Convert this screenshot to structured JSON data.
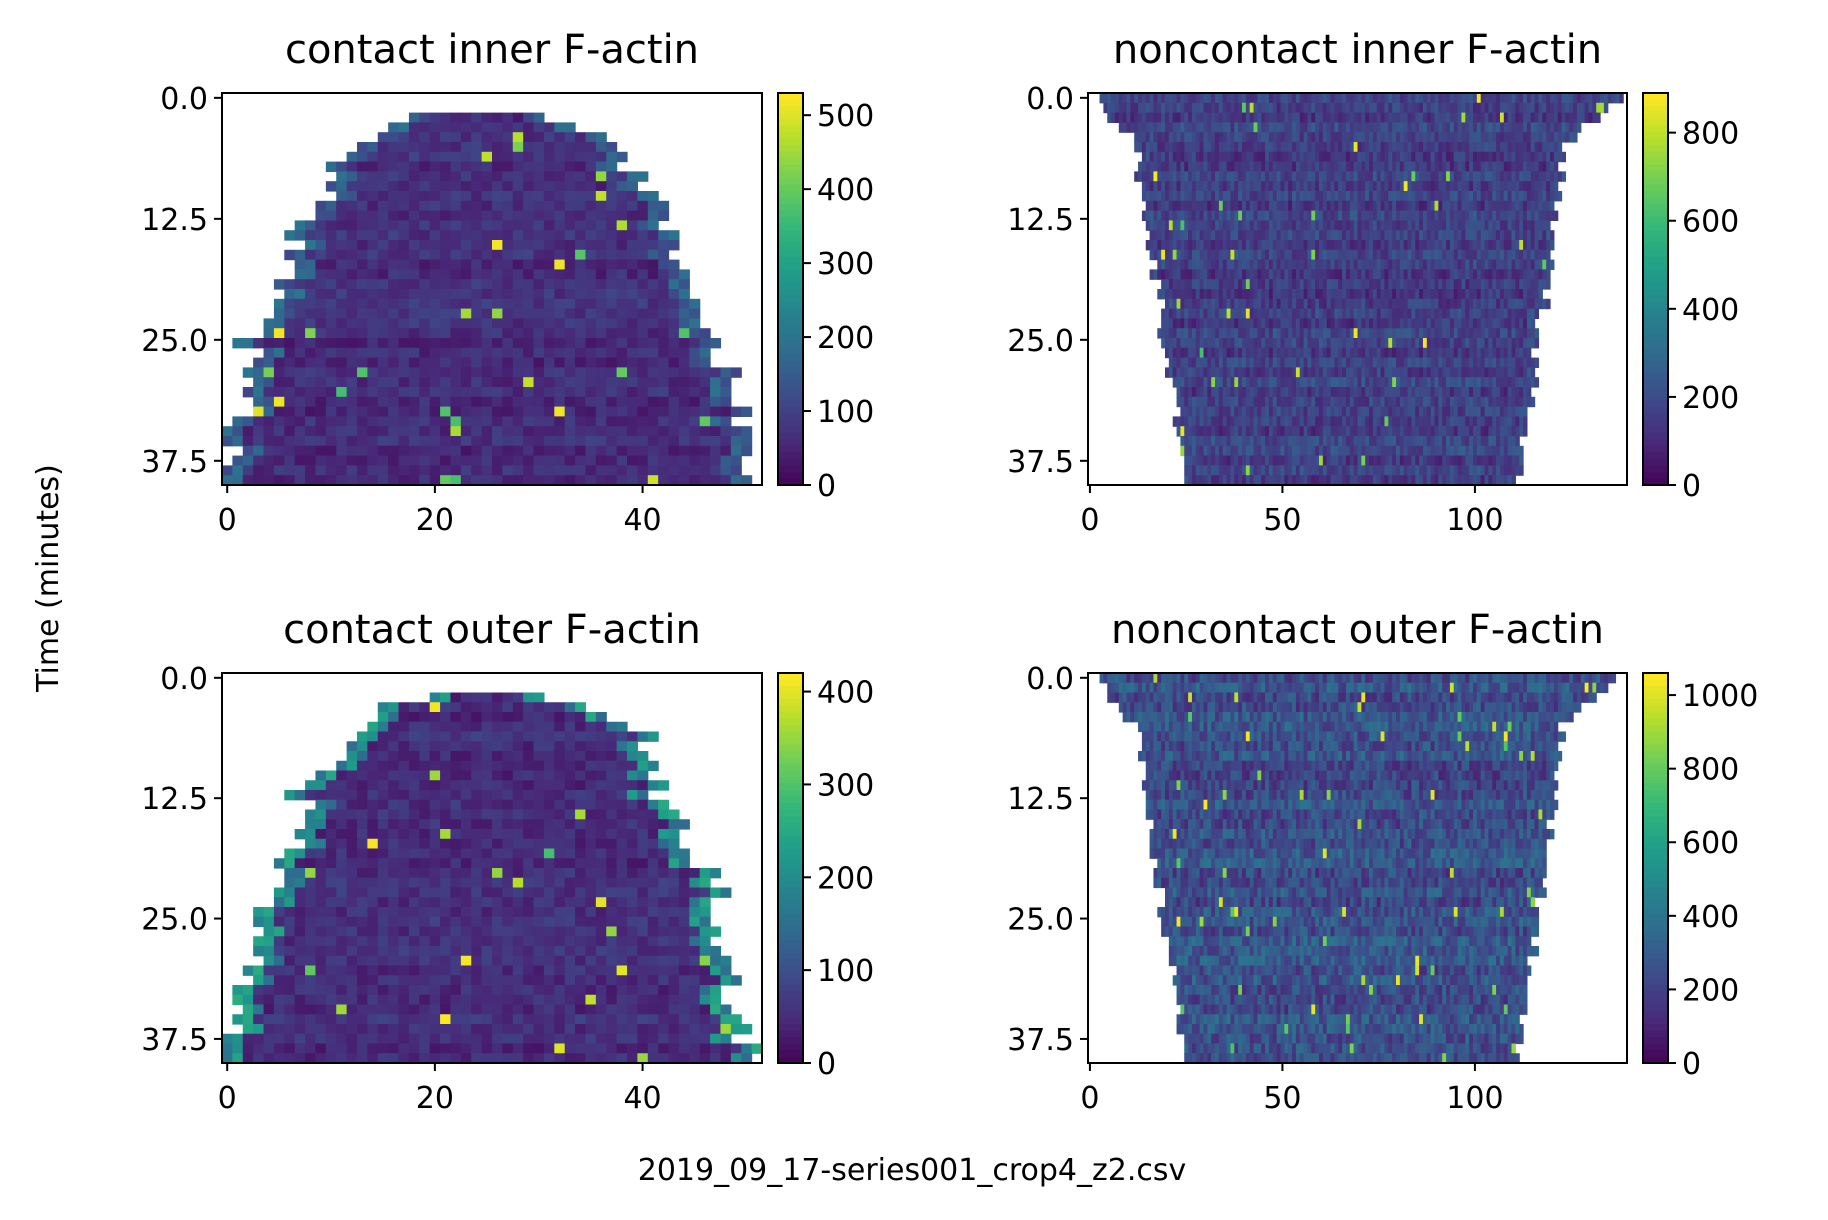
{
  "figure": {
    "ylabel": "Time (minutes)",
    "xlabel": "2019_09_17-series001_crop4_z2.csv"
  },
  "chart_data": [
    {
      "type": "heatmap",
      "title": "contact inner F-actin",
      "xlabel": "",
      "ylabel": "Time (minutes)",
      "xlim": [
        -0.5,
        51.5
      ],
      "ylim": [
        40,
        -0.5
      ],
      "xticks": [
        0,
        20,
        40
      ],
      "yticks": [
        0.0,
        12.5,
        25.0,
        37.5
      ],
      "ytick_labels": [
        "0.0",
        "12.5",
        "25.0",
        "37.5"
      ],
      "colorbar": {
        "cmap": "viridis",
        "min": 0,
        "max": 530,
        "ticks": [
          0,
          100,
          200,
          300,
          400,
          500
        ]
      },
      "shape": "dome",
      "n_cols": 52,
      "n_rows": 40,
      "typical_value": 70,
      "edge_value": 160
    },
    {
      "type": "heatmap",
      "title": "noncontact inner F-actin",
      "xlabel": "",
      "ylabel": "",
      "xlim": [
        -0.5,
        139.5
      ],
      "ylim": [
        40,
        -0.5
      ],
      "xticks": [
        0,
        50,
        100
      ],
      "yticks": [
        0.0,
        12.5,
        25.0,
        37.5
      ],
      "ytick_labels": [
        "0.0",
        "12.5",
        "25.0",
        "37.5"
      ],
      "colorbar": {
        "cmap": "viridis",
        "min": 0,
        "max": 890,
        "ticks": [
          0,
          200,
          400,
          600,
          800
        ]
      },
      "shape": "funnel",
      "n_cols": 140,
      "n_rows": 40,
      "typical_value": 170,
      "edge_value": 200
    },
    {
      "type": "heatmap",
      "title": "contact outer F-actin",
      "xlabel": "",
      "ylabel": "Time (minutes)",
      "xlim": [
        -0.5,
        51.5
      ],
      "ylim": [
        40,
        -0.5
      ],
      "xticks": [
        0,
        20,
        40
      ],
      "yticks": [
        0.0,
        12.5,
        25.0,
        37.5
      ],
      "ytick_labels": [
        "0.0",
        "12.5",
        "25.0",
        "37.5"
      ],
      "colorbar": {
        "cmap": "viridis",
        "min": 0,
        "max": 420,
        "ticks": [
          0,
          100,
          200,
          300,
          400
        ]
      },
      "shape": "dome",
      "n_cols": 52,
      "n_rows": 40,
      "typical_value": 55,
      "edge_value": 200
    },
    {
      "type": "heatmap",
      "title": "noncontact outer F-actin",
      "xlabel": "",
      "ylabel": "",
      "xlim": [
        -0.5,
        139.5
      ],
      "ylim": [
        40,
        -0.5
      ],
      "xticks": [
        0,
        50,
        100
      ],
      "yticks": [
        0.0,
        12.5,
        25.0,
        37.5
      ],
      "ytick_labels": [
        "0.0",
        "12.5",
        "25.0",
        "37.5"
      ],
      "colorbar": {
        "cmap": "viridis",
        "min": 0,
        "max": 1060,
        "ticks": [
          0,
          200,
          400,
          600,
          800,
          1000
        ]
      },
      "shape": "funnel",
      "n_cols": 140,
      "n_rows": 40,
      "typical_value": 260,
      "edge_value": 280
    }
  ]
}
